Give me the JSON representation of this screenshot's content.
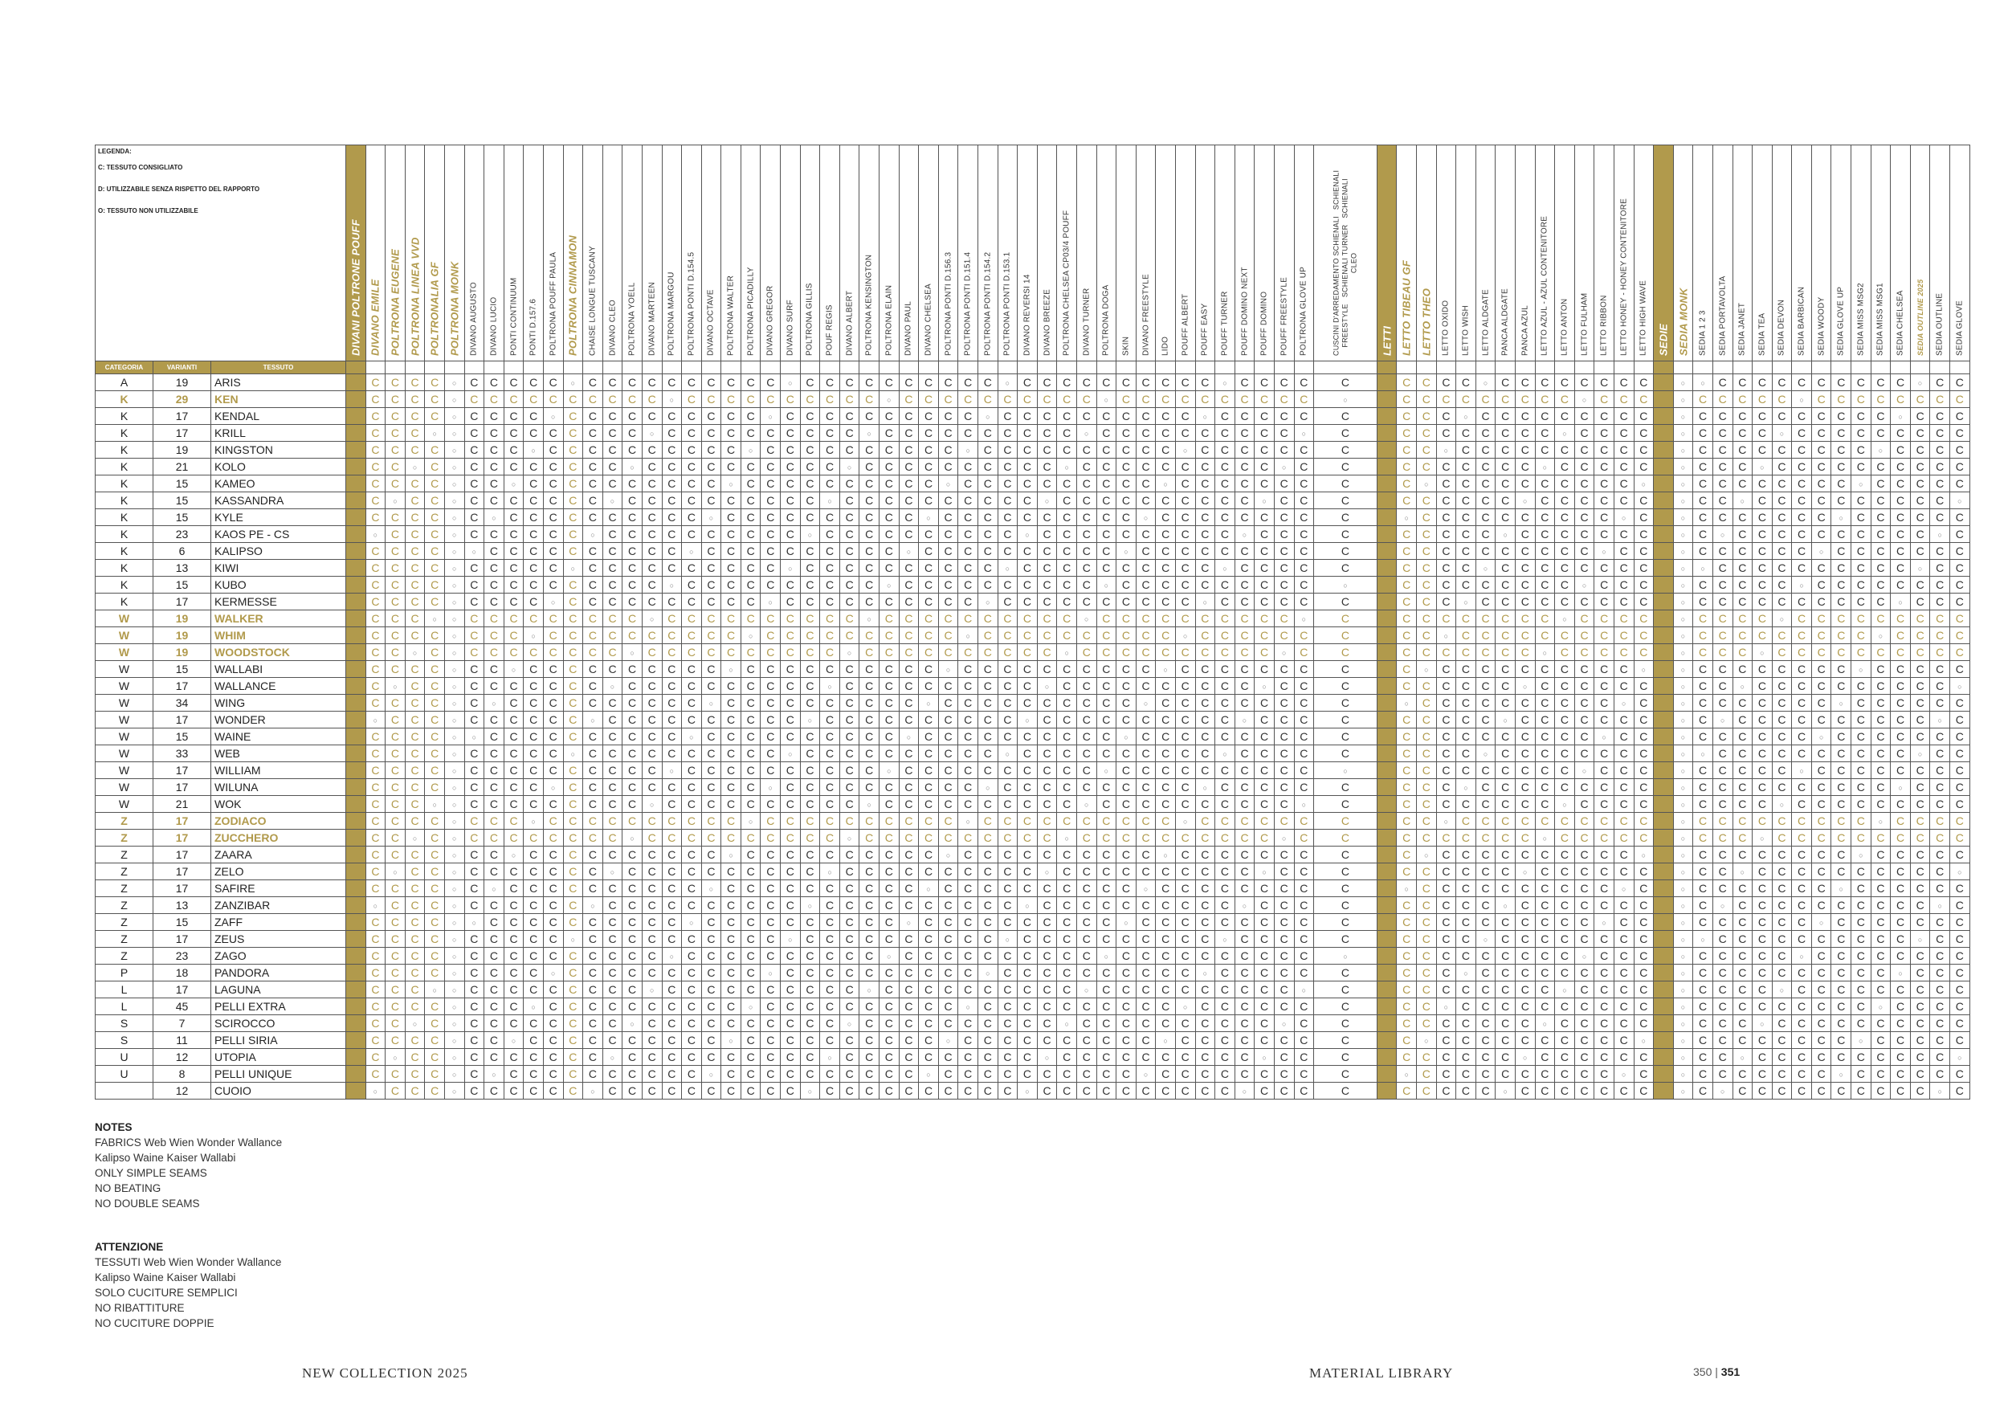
{
  "legend": {
    "title": "LEGENDA:",
    "lines": [
      "C: TESSUTO CONSIGLIATO",
      "D: UTILIZZABILE SENZA RISPETTO DEL RAPPORTO",
      "O: TESSUTO NON UTILIZZABILE"
    ]
  },
  "header": {
    "categoria": "CATEGORIA",
    "varianti": "VARIANTI",
    "tessuto": "TESSUTO"
  },
  "columns": [
    {
      "label": "DIVANI POLTRONE POUFF",
      "kind": "gold"
    },
    {
      "label": "DIVANO EMILE",
      "kind": "hl"
    },
    {
      "label": "POLTRONA EUGENE",
      "kind": "hl"
    },
    {
      "label": "POLTRONA LINEA VVD",
      "kind": "hl"
    },
    {
      "label": "POLTRONALIA GF",
      "kind": "hl"
    },
    {
      "label": "POLTRONA MONK",
      "kind": "hl"
    },
    {
      "label": "DIVANO AUGUSTO",
      "kind": "n"
    },
    {
      "label": "DIVANO LUCIO",
      "kind": "n"
    },
    {
      "label": "PONTI CONTINUUM",
      "kind": "n"
    },
    {
      "label": "PONTI D.157.6",
      "kind": "n"
    },
    {
      "label": "POLTRONA POUFF PAULA",
      "kind": "n"
    },
    {
      "label": "POLTRONA CINNAMON",
      "kind": "hl"
    },
    {
      "label": "CHAISE LONGUE TUSCANY",
      "kind": "n"
    },
    {
      "label": "DIVANO CLEO",
      "kind": "n"
    },
    {
      "label": "POLTRONA YOELL",
      "kind": "n"
    },
    {
      "label": "DIVANO MARTEEN",
      "kind": "n"
    },
    {
      "label": "POLTRONA MARGOU",
      "kind": "n"
    },
    {
      "label": "POLTRONA PONTI D.154.5",
      "kind": "n"
    },
    {
      "label": "DIVANO OCTAVE",
      "kind": "n"
    },
    {
      "label": "POLTRONA WALTER",
      "kind": "n"
    },
    {
      "label": "POLTRONA PICADILLY",
      "kind": "n"
    },
    {
      "label": "DIVANO GREGOR",
      "kind": "n"
    },
    {
      "label": "DIVANO SURF",
      "kind": "n"
    },
    {
      "label": "POLTRONA GILLIS",
      "kind": "n"
    },
    {
      "label": "POUF REGIS",
      "kind": "n"
    },
    {
      "label": "DIVANO ALBERT",
      "kind": "n"
    },
    {
      "label": "POLTRONA KENSINGTON",
      "kind": "n"
    },
    {
      "label": "POLTRONA ELAIN",
      "kind": "n"
    },
    {
      "label": "DIVANO PAUL",
      "kind": "n"
    },
    {
      "label": "DIVANO CHELSEA",
      "kind": "n"
    },
    {
      "label": "POLTRONA PONTI D.156.3",
      "kind": "n"
    },
    {
      "label": "POLTRONA PONTI D.151.4",
      "kind": "n"
    },
    {
      "label": "POLTRONA PONTI D.154.2",
      "kind": "n"
    },
    {
      "label": "POLTRONA PONTI D.153.1",
      "kind": "n"
    },
    {
      "label": "DIVANO REVERSI 14",
      "kind": "n"
    },
    {
      "label": "DIVANO BREEZE",
      "kind": "n"
    },
    {
      "label": "POLTRONA CHELSEA CP03/4 POUFF",
      "kind": "n"
    },
    {
      "label": "DIVANO TURNER",
      "kind": "n"
    },
    {
      "label": "POLTRONA DOGA",
      "kind": "n"
    },
    {
      "label": "SKIN",
      "kind": "n"
    },
    {
      "label": "DIVANO FREESTYLE",
      "kind": "n"
    },
    {
      "label": "LIDO",
      "kind": "n"
    },
    {
      "label": "POUFF ALBERT",
      "kind": "n"
    },
    {
      "label": "POUFF EASY",
      "kind": "n"
    },
    {
      "label": "POUFF TURNER",
      "kind": "n"
    },
    {
      "label": "POUFF DOMINO NEXT",
      "kind": "n"
    },
    {
      "label": "POUFF DOMINO",
      "kind": "n"
    },
    {
      "label": "POUFF FREESTYLE",
      "kind": "n"
    },
    {
      "label": "POLTRONA GLOVE UP",
      "kind": "n"
    },
    {
      "label": "CUSCINI D'ARREDAMENTO SCHIENALI   SCHIENALI\nFREESTYLE   SCHIENALI TURNER   SCHIENALI\nCLEO",
      "kind": "two"
    },
    {
      "label": "LETTI",
      "kind": "gold"
    },
    {
      "label": "LETTO TIBEAU GF",
      "kind": "hl"
    },
    {
      "label": "LETTO THEO",
      "kind": "hl"
    },
    {
      "label": "LETTO OXIDO",
      "kind": "n"
    },
    {
      "label": "LETTO WISH",
      "kind": "n"
    },
    {
      "label": "LETTO ALDGATE",
      "kind": "n"
    },
    {
      "label": "PANCA ALDGATE",
      "kind": "n"
    },
    {
      "label": "PANCA AZUL",
      "kind": "n"
    },
    {
      "label": "LETTO AZUL - AZUL CONTENITORE",
      "kind": "n"
    },
    {
      "label": "LETTO ANTON",
      "kind": "n"
    },
    {
      "label": "LETTO FULHAM",
      "kind": "n"
    },
    {
      "label": "LETTO RIBBON",
      "kind": "n"
    },
    {
      "label": "LETTO HONEY - HONEY CONTENITORE",
      "kind": "n"
    },
    {
      "label": "LETTO HIGH WAVE",
      "kind": "n"
    },
    {
      "label": "SEDIE",
      "kind": "gold"
    },
    {
      "label": "SEDIA MONK",
      "kind": "hl"
    },
    {
      "label": "SEDIA 1 2 3",
      "kind": "n"
    },
    {
      "label": "SEDIA PORTAVOLTA",
      "kind": "n"
    },
    {
      "label": "SEDIA JANET",
      "kind": "n"
    },
    {
      "label": "SEDIA TEA",
      "kind": "n"
    },
    {
      "label": "SEDIA DEVON",
      "kind": "n"
    },
    {
      "label": "SEDIA BARBICAN",
      "kind": "n"
    },
    {
      "label": "SEDIA WOODY",
      "kind": "n"
    },
    {
      "label": "SEDIA GLOVE UP",
      "kind": "n"
    },
    {
      "label": "SEDIA MISS MSG2",
      "kind": "n"
    },
    {
      "label": "SEDIA MISS MSG1",
      "kind": "n"
    },
    {
      "label": "SEDIA CHELSEA",
      "kind": "n"
    },
    {
      "label": "SEDIA OUTLINE 2025",
      "kind": "hls"
    },
    {
      "label": "SEDIA OUTLINE",
      "kind": "n"
    },
    {
      "label": "SEDIA GLOVE",
      "kind": "n"
    }
  ],
  "rows": [
    {
      "cat": "A",
      "var": "19",
      "name": "ARIS",
      "hl": false
    },
    {
      "cat": "K",
      "var": "29",
      "name": "KEN",
      "hl": true
    },
    {
      "cat": "K",
      "var": "17",
      "name": "KENDAL",
      "hl": false
    },
    {
      "cat": "K",
      "var": "17",
      "name": "KRILL",
      "hl": false
    },
    {
      "cat": "K",
      "var": "19",
      "name": "KINGSTON",
      "hl": false
    },
    {
      "cat": "K",
      "var": "21",
      "name": "KOLO",
      "hl": false
    },
    {
      "cat": "K",
      "var": "15",
      "name": "KAMEO",
      "hl": false
    },
    {
      "cat": "K",
      "var": "15",
      "name": "KASSANDRA",
      "hl": false
    },
    {
      "cat": "K",
      "var": "15",
      "name": "KYLE",
      "hl": false
    },
    {
      "cat": "K",
      "var": "23",
      "name": "KAOS PE - CS",
      "hl": false
    },
    {
      "cat": "K",
      "var": "6",
      "name": "KALIPSO",
      "hl": false
    },
    {
      "cat": "K",
      "var": "13",
      "name": "KIWI",
      "hl": false
    },
    {
      "cat": "K",
      "var": "15",
      "name": "KUBO",
      "hl": false
    },
    {
      "cat": "K",
      "var": "17",
      "name": "KERMESSE",
      "hl": false
    },
    {
      "cat": "W",
      "var": "19",
      "name": "WALKER",
      "hl": true
    },
    {
      "cat": "W",
      "var": "19",
      "name": "WHIM",
      "hl": true
    },
    {
      "cat": "W",
      "var": "19",
      "name": "WOODSTOCK",
      "hl": true
    },
    {
      "cat": "W",
      "var": "15",
      "name": "WALLABI",
      "hl": false
    },
    {
      "cat": "W",
      "var": "17",
      "name": "WALLANCE",
      "hl": false
    },
    {
      "cat": "W",
      "var": "34",
      "name": "WING",
      "hl": false
    },
    {
      "cat": "W",
      "var": "17",
      "name": "WONDER",
      "hl": false
    },
    {
      "cat": "W",
      "var": "15",
      "name": "WAINE",
      "hl": false
    },
    {
      "cat": "W",
      "var": "33",
      "name": "WEB",
      "hl": false
    },
    {
      "cat": "W",
      "var": "17",
      "name": "WILLIAM",
      "hl": false
    },
    {
      "cat": "W",
      "var": "17",
      "name": "WILUNA",
      "hl": false
    },
    {
      "cat": "W",
      "var": "21",
      "name": "WOK",
      "hl": false
    },
    {
      "cat": "Z",
      "var": "17",
      "name": "ZODIACO",
      "hl": true
    },
    {
      "cat": "Z",
      "var": "17",
      "name": "ZUCCHERO",
      "hl": true
    },
    {
      "cat": "Z",
      "var": "17",
      "name": "ZAARA",
      "hl": false
    },
    {
      "cat": "Z",
      "var": "17",
      "name": "ZELO",
      "hl": false
    },
    {
      "cat": "Z",
      "var": "17",
      "name": "SAFIRE",
      "hl": false
    },
    {
      "cat": "Z",
      "var": "13",
      "name": "ZANZIBAR",
      "hl": false
    },
    {
      "cat": "Z",
      "var": "15",
      "name": "ZAFF",
      "hl": false
    },
    {
      "cat": "Z",
      "var": "17",
      "name": "ZEUS",
      "hl": false
    },
    {
      "cat": "Z",
      "var": "23",
      "name": "ZAGO",
      "hl": false
    },
    {
      "cat": "P",
      "var": "18",
      "name": "PANDORA",
      "hl": false
    },
    {
      "cat": "L",
      "var": "17",
      "name": "LAGUNA",
      "hl": false
    },
    {
      "cat": "L",
      "var": "45",
      "name": "PELLI EXTRA",
      "hl": false
    },
    {
      "cat": "S",
      "var": "7",
      "name": "SCIROCCO",
      "hl": false
    },
    {
      "cat": "S",
      "var": "11",
      "name": "PELLI SIRIA",
      "hl": false
    },
    {
      "cat": "U",
      "var": "12",
      "name": "UTOPIA",
      "hl": false
    },
    {
      "cat": "U",
      "var": "8",
      "name": "PELLI UNIQUE",
      "hl": false
    },
    {
      "cat": "",
      "var": "12",
      "name": "CUOIO",
      "hl": false
    }
  ],
  "notes": {
    "title": "NOTES",
    "lines": [
      "FABRICS Web Wien Wonder Wallance",
      "Kalipso Waine Kaiser Wallabi",
      "ONLY SIMPLE SEAMS",
      "NO BEATING",
      "NO DOUBLE SEAMS"
    ]
  },
  "attenzione": {
    "title": "ATTENZIONE",
    "lines": [
      "TESSUTI Web Wien Wonder Wallance",
      "Kalipso Waine Kaiser Wallabi",
      "SOLO CUCITURE SEMPLICI",
      "NO RIBATTITURE",
      "NO CUCITURE DOPPIE"
    ]
  },
  "footer": {
    "left": "NEW COLLECTION 2025",
    "right": "MATERIAL LIBRARY",
    "page_a": "350",
    "page_sep": "|",
    "page_b": "351"
  },
  "colors": {
    "gold": "#b19a4c",
    "text": "#222222"
  }
}
